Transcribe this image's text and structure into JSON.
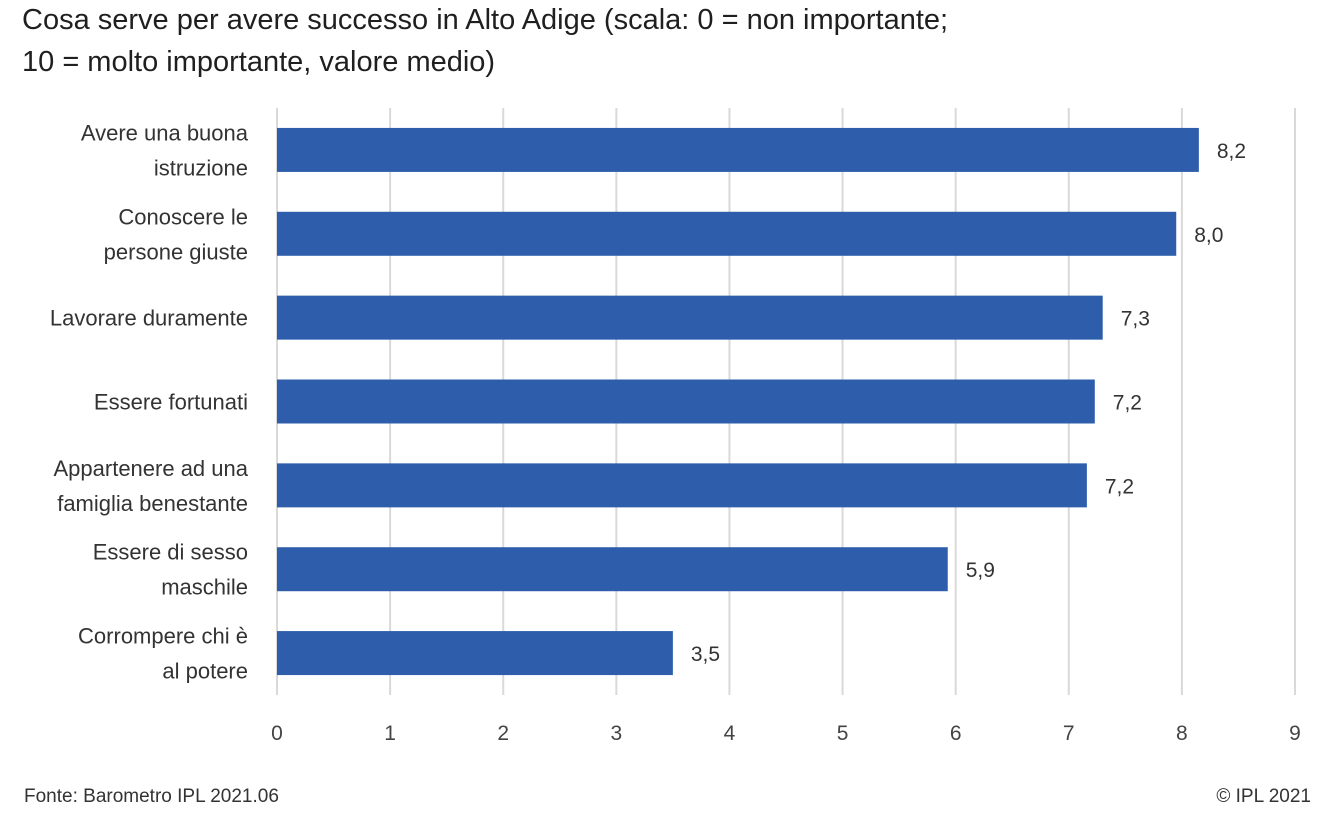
{
  "chart_data": {
    "type": "bar",
    "orientation": "horizontal",
    "title_lines": [
      "Cosa serve per avere successo in Alto Adige (scala: 0 = non importante;",
      "10 = molto importante, valore medio)"
    ],
    "categories": [
      [
        "Avere una buona",
        "istruzione"
      ],
      [
        "Conoscere le",
        "persone giuste"
      ],
      [
        "Lavorare duramente"
      ],
      [
        "Essere fortunati"
      ],
      [
        "Appartenere ad una",
        "famiglia benestante"
      ],
      [
        "Essere di sesso",
        "maschile"
      ],
      [
        "Corrompere chi è",
        "al potere"
      ]
    ],
    "values": [
      8.15,
      7.95,
      7.3,
      7.23,
      7.16,
      5.93,
      3.5
    ],
    "value_labels": [
      "8,2",
      "8,0",
      "7,3",
      "7,2",
      "7,2",
      "5,9",
      "3,5"
    ],
    "xlim": [
      0,
      9
    ],
    "x_ticks": [
      "0",
      "1",
      "2",
      "3",
      "4",
      "5",
      "6",
      "7",
      "8",
      "9"
    ],
    "grid": "vertical",
    "bar_color": "#2e5eab",
    "grid_color": "#d9d9d9"
  },
  "footer": {
    "source": "Fonte: Barometro IPL 2021.06",
    "copyright": "© IPL 2021"
  }
}
